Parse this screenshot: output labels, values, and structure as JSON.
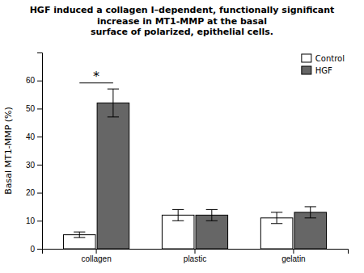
{
  "chart_data": {
    "type": "bar",
    "title": "HGF induced a collagen I–dependent, functionally significant increase in MT1-MMP at the basal",
    "subtitle": "surface of polarized, epithelial cells.",
    "categories": [
      "collagen",
      "plastic",
      "gelatin"
    ],
    "series": [
      {
        "name": "Control",
        "color": "#ffffff",
        "values": [
          5,
          12,
          11
        ],
        "errors": [
          1,
          2,
          2
        ]
      },
      {
        "name": "HGF",
        "color": "#666666",
        "values": [
          52,
          12,
          13
        ],
        "errors": [
          5,
          2,
          2
        ]
      }
    ],
    "ylabel": "Basal MT1-MMP (%)",
    "ylim": [
      0,
      70
    ],
    "yticks": [
      0,
      10,
      20,
      30,
      40,
      50,
      60
    ],
    "legend": "upper right",
    "annotations": [
      {
        "text": "*",
        "x": "collagen",
        "y": 60
      }
    ]
  }
}
